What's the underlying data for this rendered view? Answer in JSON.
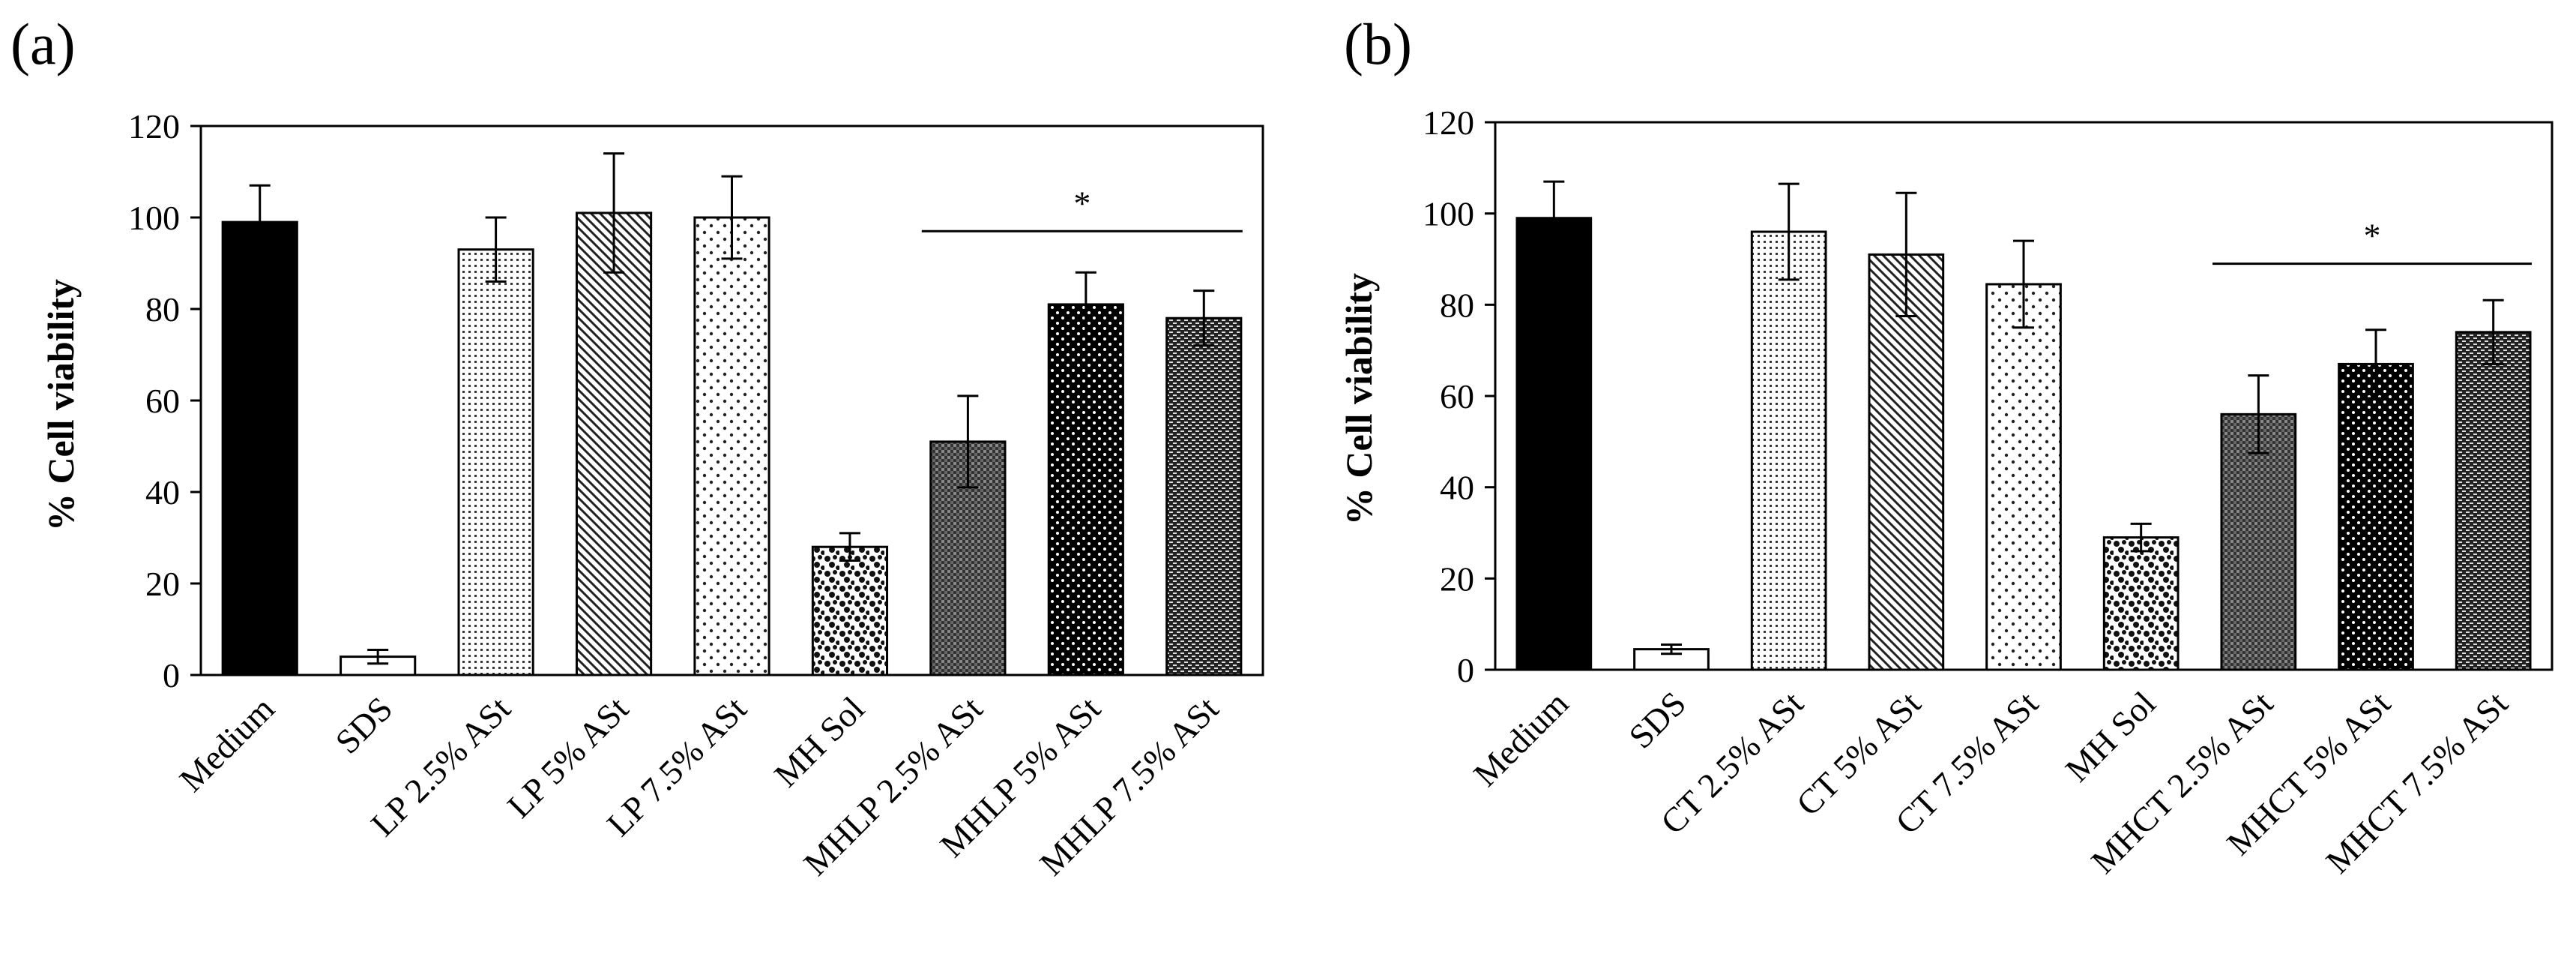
{
  "chart_data": [
    {
      "type": "bar",
      "panel_label": "(a)",
      "ylabel": "% Cell viability",
      "xlabel": "",
      "ylim": [
        0,
        120
      ],
      "yticks": [
        "0",
        "20",
        "40",
        "60",
        "80",
        "100",
        "120"
      ],
      "categories": [
        "Medium",
        "SDS",
        "LP 2.5% ASt",
        "LP 5% ASt",
        "LP 7.5% ASt",
        "MH Sol",
        "MHLP 2.5% ASt",
        "MHLP 5% ASt",
        "MHLP 7.5% ASt"
      ],
      "values": [
        99,
        4,
        93,
        101,
        100,
        28,
        51,
        81,
        78
      ],
      "errors": [
        8,
        1.5,
        7,
        13,
        9,
        3,
        10,
        7,
        6
      ],
      "patterns": [
        "solid",
        "white",
        "fine-dots",
        "diagonal",
        "sparse-dots",
        "coarse-dots",
        "dense-dark",
        "dark-dots",
        "hlines"
      ],
      "significance": {
        "label": "*",
        "from_index": 6,
        "to_index": 8,
        "level": 97
      }
    },
    {
      "type": "bar",
      "panel_label": "(b)",
      "ylabel": "% Cell viability",
      "xlabel": "",
      "ylim": [
        0,
        120
      ],
      "yticks": [
        "0",
        "20",
        "40",
        "60",
        "80",
        "100",
        "120"
      ],
      "categories": [
        "Medium",
        "SDS",
        "CT 2.5% ASt",
        "CT 5% ASt",
        "CT 7.5% ASt",
        "MH Sol",
        "MHCT 2.5% ASt",
        "MHCT 5% ASt",
        "MHCT 7.5% ASt"
      ],
      "values": [
        99,
        4.5,
        96,
        91,
        84.5,
        29,
        56,
        67,
        74
      ],
      "errors": [
        8,
        1,
        10.5,
        13.5,
        9.5,
        3,
        8.5,
        7.5,
        7
      ],
      "patterns": [
        "solid",
        "white",
        "fine-dots",
        "diagonal",
        "sparse-dots",
        "coarse-dots",
        "dense-dark",
        "dark-dots",
        "hlines"
      ],
      "significance": {
        "label": "*",
        "from_index": 6,
        "to_index": 8,
        "level": 89
      }
    }
  ]
}
